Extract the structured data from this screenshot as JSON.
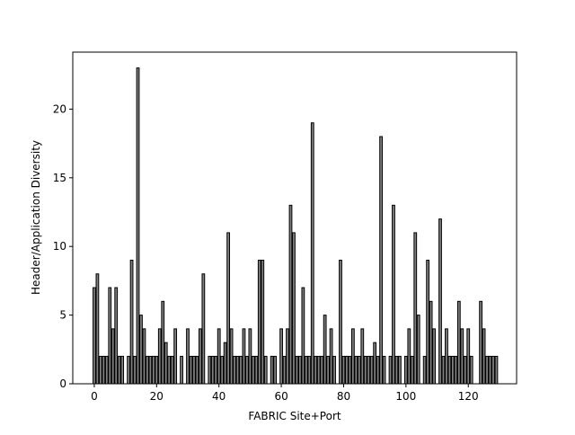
{
  "chart_data": {
    "type": "bar",
    "xlabel": "FABRIC Site+Port",
    "ylabel": "Header/Application Diversity",
    "x": [
      0,
      1,
      2,
      3,
      4,
      5,
      6,
      7,
      8,
      9,
      10,
      11,
      12,
      13,
      14,
      15,
      16,
      17,
      18,
      19,
      20,
      21,
      22,
      23,
      24,
      25,
      26,
      27,
      28,
      29,
      30,
      31,
      32,
      33,
      34,
      35,
      36,
      37,
      38,
      39,
      40,
      41,
      42,
      43,
      44,
      45,
      46,
      47,
      48,
      49,
      50,
      51,
      52,
      53,
      54,
      55,
      56,
      57,
      58,
      59,
      60,
      61,
      62,
      63,
      64,
      65,
      66,
      67,
      68,
      69,
      70,
      71,
      72,
      73,
      74,
      75,
      76,
      77,
      78,
      79,
      80,
      81,
      82,
      83,
      84,
      85,
      86,
      87,
      88,
      89,
      90,
      91,
      92,
      93,
      94,
      95,
      96,
      97,
      98,
      99,
      100,
      101,
      102,
      103,
      104,
      105,
      106,
      107,
      108,
      109,
      110,
      111,
      112,
      113,
      114,
      115,
      116,
      117,
      118,
      119,
      120,
      121,
      122,
      123,
      124,
      125,
      126,
      127,
      128,
      129
    ],
    "values": [
      7,
      8,
      2,
      2,
      2,
      7,
      4,
      7,
      2,
      2,
      0,
      2,
      9,
      2,
      23,
      5,
      4,
      2,
      2,
      2,
      2,
      4,
      6,
      3,
      2,
      2,
      4,
      0,
      2,
      0,
      4,
      2,
      2,
      2,
      4,
      8,
      0,
      2,
      2,
      2,
      4,
      2,
      3,
      11,
      4,
      2,
      2,
      2,
      4,
      2,
      4,
      2,
      2,
      9,
      9,
      2,
      0,
      2,
      2,
      0,
      4,
      2,
      4,
      13,
      11,
      2,
      2,
      7,
      2,
      2,
      19,
      2,
      2,
      2,
      5,
      2,
      4,
      2,
      0,
      9,
      2,
      2,
      2,
      4,
      2,
      2,
      4,
      2,
      2,
      2,
      3,
      2,
      18,
      2,
      0,
      2,
      13,
      2,
      2,
      0,
      2,
      4,
      2,
      11,
      5,
      0,
      2,
      9,
      6,
      4,
      0,
      12,
      2,
      4,
      2,
      2,
      2,
      6,
      4,
      2,
      4,
      2,
      0,
      0,
      6,
      4,
      2,
      2,
      2,
      2
    ],
    "color": "#808080",
    "edgecolor": "#000000",
    "xlim": [
      -6.9,
      135.5
    ],
    "ylim": [
      0,
      24.15
    ],
    "xticks": [
      0,
      20,
      40,
      60,
      80,
      100,
      120
    ],
    "yticks": [
      0,
      5,
      10,
      15,
      20
    ]
  }
}
